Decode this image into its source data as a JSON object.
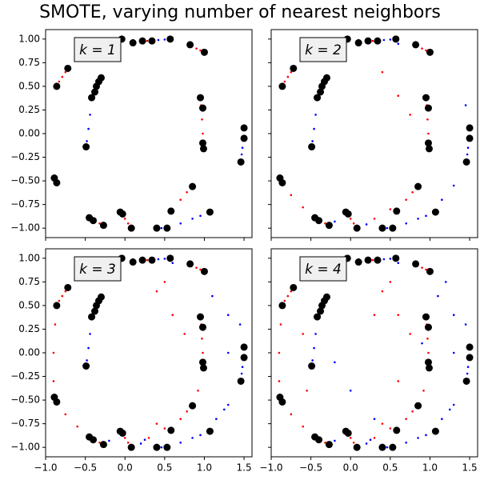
{
  "title": "SMOTE, varying number of nearest neighbors",
  "chart_data": [
    {
      "type": "scatter",
      "annotation": "k = 1",
      "xlim": [
        -1.0,
        1.6
      ],
      "ylim": [
        -1.1,
        1.1
      ],
      "xticks": [
        -1.0,
        -0.5,
        0.0,
        0.5,
        1.0,
        1.5
      ],
      "yticks": [
        {
          "value": -1.0,
          "label": "−1.00"
        },
        {
          "value": -0.75,
          "label": "−0.75"
        },
        {
          "value": -0.5,
          "label": "−0.50"
        },
        {
          "value": -0.25,
          "label": "−0.25"
        },
        {
          "value": 0.0,
          "label": "0.00"
        },
        {
          "value": 0.25,
          "label": "0.25"
        },
        {
          "value": 0.5,
          "label": "0.50"
        },
        {
          "value": 0.75,
          "label": "0.75"
        },
        {
          "value": 1.0,
          "label": "1.00"
        }
      ],
      "series": [
        {
          "color": "#ff0000",
          "size": 1.3,
          "x": [
            -0.79,
            -0.75,
            -0.83,
            0.1,
            0.2,
            0.28,
            0.9,
            0.95,
            0.96,
            0.97,
            0.98,
            0.985,
            0.7,
            0.78,
            -0.38,
            -0.32,
            0.0,
            0.04
          ],
          "values": [
            0.6,
            0.65,
            0.55,
            0.99,
            0.985,
            0.98,
            0.9,
            0.88,
            0.3,
            0.15,
            0.0,
            -0.1,
            -0.7,
            -0.62,
            -0.93,
            -0.95,
            -0.9,
            -0.95
          ]
        },
        {
          "color": "#0000ff",
          "size": 1.3,
          "x": [
            0.42,
            0.5,
            -0.35,
            -0.4,
            -0.44,
            -0.46,
            -0.48,
            1.49,
            1.48,
            1.47,
            0.7,
            0.85,
            0.95,
            0.46
          ],
          "values": [
            0.99,
            0.995,
            0.5,
            0.42,
            0.2,
            0.05,
            -0.08,
            -0.05,
            -0.15,
            -0.22,
            -0.95,
            -0.9,
            -0.87,
            -1.0
          ]
        },
        {
          "color": "#000000",
          "size": 4.5,
          "x": [
            -0.04,
            0.1,
            0.22,
            0.34,
            0.57,
            0.82,
            1.0,
            -0.72,
            -0.86,
            -0.3,
            -0.33,
            -0.36,
            -0.38,
            -0.42,
            -0.49,
            0.95,
            0.98,
            0.98,
            0.99,
            1.5,
            1.5,
            1.46,
            -0.89,
            -0.86,
            0.85,
            0.58,
            1.07,
            -0.45,
            -0.4,
            -0.27,
            -0.06,
            -0.03,
            0.08,
            0.4,
            0.53
          ],
          "values": [
            1.0,
            0.96,
            0.98,
            0.98,
            1.0,
            0.94,
            0.86,
            0.69,
            0.5,
            0.59,
            0.55,
            0.5,
            0.44,
            0.38,
            -0.14,
            0.38,
            0.27,
            -0.1,
            -0.16,
            0.06,
            -0.05,
            -0.3,
            -0.47,
            -0.52,
            -0.56,
            -0.82,
            -0.83,
            -0.89,
            -0.92,
            -0.97,
            -0.83,
            -0.85,
            -1.0,
            -1.0,
            -1.0
          ]
        }
      ]
    },
    {
      "type": "scatter",
      "annotation": "k = 2",
      "xlim": [
        -1.0,
        1.6
      ],
      "ylim": [
        -1.1,
        1.1
      ],
      "xticks": [
        -1.0,
        -0.5,
        0.0,
        0.5,
        1.0,
        1.5
      ],
      "yticks": [
        -1.0,
        -0.75,
        -0.5,
        -0.25,
        0.0,
        0.25,
        0.5,
        0.75,
        1.0
      ],
      "series": [
        {
          "color": "#ff0000",
          "size": 1.3,
          "x": [
            -0.79,
            -0.75,
            -0.83,
            0.1,
            0.2,
            0.28,
            0.9,
            0.95,
            0.96,
            0.97,
            0.98,
            0.985,
            0.7,
            0.78,
            -0.38,
            -0.32,
            0.0,
            0.04,
            -0.6,
            -0.45,
            0.4,
            0.6,
            0.75,
            -0.75,
            -0.6,
            0.3,
            0.5
          ],
          "values": [
            0.6,
            0.65,
            0.55,
            0.99,
            0.985,
            0.98,
            0.9,
            0.88,
            0.3,
            0.15,
            0.0,
            -0.1,
            -0.7,
            -0.62,
            -0.93,
            -0.95,
            -0.9,
            -0.95,
            0.8,
            0.9,
            0.65,
            0.4,
            0.2,
            -0.65,
            -0.78,
            -0.9,
            -0.8
          ]
        },
        {
          "color": "#0000ff",
          "size": 1.3,
          "x": [
            0.42,
            0.5,
            -0.35,
            -0.4,
            -0.44,
            -0.46,
            -0.48,
            1.49,
            1.48,
            1.47,
            0.7,
            0.85,
            0.95,
            0.46,
            -0.47,
            -0.2,
            0.2,
            1.3,
            1.15,
            1.45,
            0.6
          ],
          "values": [
            0.99,
            0.995,
            0.5,
            0.42,
            0.2,
            0.05,
            -0.08,
            -0.05,
            -0.15,
            -0.22,
            -0.95,
            -0.9,
            -0.87,
            -1.0,
            -0.9,
            -0.93,
            -0.96,
            -0.55,
            -0.7,
            0.3,
            0.95
          ]
        },
        {
          "color": "#000000",
          "size": 4.5,
          "x": [
            -0.04,
            0.1,
            0.22,
            0.34,
            0.57,
            0.82,
            1.0,
            -0.72,
            -0.86,
            -0.3,
            -0.33,
            -0.36,
            -0.38,
            -0.42,
            -0.49,
            0.95,
            0.98,
            0.98,
            0.99,
            1.5,
            1.5,
            1.46,
            -0.89,
            -0.86,
            0.85,
            0.58,
            1.07,
            -0.45,
            -0.4,
            -0.27,
            -0.06,
            -0.03,
            0.08,
            0.4,
            0.53
          ],
          "values": [
            1.0,
            0.96,
            0.98,
            0.98,
            1.0,
            0.94,
            0.86,
            0.69,
            0.5,
            0.59,
            0.55,
            0.5,
            0.44,
            0.38,
            -0.14,
            0.38,
            0.27,
            -0.1,
            -0.16,
            0.06,
            -0.05,
            -0.3,
            -0.47,
            -0.52,
            -0.56,
            -0.82,
            -0.83,
            -0.89,
            -0.92,
            -0.97,
            -0.83,
            -0.85,
            -1.0,
            -1.0,
            -1.0
          ]
        }
      ]
    },
    {
      "type": "scatter",
      "annotation": "k = 3",
      "xlim": [
        -1.0,
        1.6
      ],
      "ylim": [
        -1.1,
        1.1
      ],
      "xticks": [
        {
          "value": -1.0,
          "label": "−1.0"
        },
        {
          "value": -0.5,
          "label": "−0.5"
        },
        {
          "value": 0.0,
          "label": "0.0"
        },
        {
          "value": 0.5,
          "label": "0.5"
        },
        {
          "value": 1.0,
          "label": "1.0"
        },
        {
          "value": 1.5,
          "label": "1.5"
        }
      ],
      "yticks": [
        {
          "value": -1.0,
          "label": "−1.00"
        },
        {
          "value": -0.75,
          "label": "−0.75"
        },
        {
          "value": -0.5,
          "label": "−0.50"
        },
        {
          "value": -0.25,
          "label": "−0.25"
        },
        {
          "value": 0.0,
          "label": "0.00"
        },
        {
          "value": 0.25,
          "label": "0.25"
        },
        {
          "value": 0.5,
          "label": "0.50"
        },
        {
          "value": 0.75,
          "label": "0.75"
        },
        {
          "value": 1.0,
          "label": "1.00"
        }
      ],
      "series": [
        {
          "color": "#ff0000",
          "size": 1.3,
          "x": [
            -0.79,
            -0.75,
            -0.83,
            0.1,
            0.2,
            0.28,
            0.9,
            0.95,
            0.96,
            0.97,
            0.98,
            0.985,
            0.7,
            0.78,
            -0.38,
            -0.32,
            0.0,
            0.04,
            -0.6,
            -0.45,
            0.4,
            0.6,
            0.75,
            -0.75,
            -0.6,
            0.3,
            0.5,
            -0.9,
            -0.88,
            -0.9,
            0.5,
            0.4,
            0.92
          ],
          "values": [
            0.6,
            0.65,
            0.55,
            0.99,
            0.985,
            0.98,
            0.9,
            0.88,
            0.3,
            0.15,
            0.0,
            -0.1,
            -0.7,
            -0.62,
            -0.93,
            -0.95,
            -0.9,
            -0.95,
            0.8,
            0.9,
            0.65,
            0.4,
            0.2,
            -0.65,
            -0.78,
            -0.9,
            -0.8,
            0.0,
            0.3,
            -0.3,
            0.75,
            -0.75,
            -0.4
          ]
        },
        {
          "color": "#0000ff",
          "size": 1.3,
          "x": [
            0.42,
            0.5,
            -0.35,
            -0.4,
            -0.44,
            -0.46,
            -0.48,
            1.49,
            1.48,
            1.47,
            0.7,
            0.85,
            0.95,
            0.46,
            -0.47,
            -0.2,
            0.2,
            1.3,
            1.15,
            1.45,
            0.6,
            1.1,
            1.3,
            0.25,
            1.25,
            1.3
          ],
          "values": [
            0.99,
            0.995,
            0.5,
            0.42,
            0.2,
            0.05,
            -0.08,
            -0.05,
            -0.15,
            -0.22,
            -0.95,
            -0.9,
            -0.87,
            -1.0,
            -0.9,
            -0.93,
            -0.96,
            -0.55,
            -0.7,
            0.3,
            0.95,
            0.6,
            0.4,
            -0.92,
            -0.6,
            0.0
          ]
        },
        {
          "color": "#000000",
          "size": 4.5,
          "x": [
            -0.04,
            0.1,
            0.22,
            0.34,
            0.57,
            0.82,
            1.0,
            -0.72,
            -0.86,
            -0.3,
            -0.33,
            -0.36,
            -0.38,
            -0.42,
            -0.49,
            0.95,
            0.98,
            0.98,
            0.99,
            1.5,
            1.5,
            1.46,
            -0.89,
            -0.86,
            0.85,
            0.58,
            1.07,
            -0.45,
            -0.4,
            -0.27,
            -0.06,
            -0.03,
            0.08,
            0.4,
            0.53
          ],
          "values": [
            1.0,
            0.96,
            0.98,
            0.98,
            1.0,
            0.94,
            0.86,
            0.69,
            0.5,
            0.59,
            0.55,
            0.5,
            0.44,
            0.38,
            -0.14,
            0.38,
            0.27,
            -0.1,
            -0.16,
            0.06,
            -0.05,
            -0.3,
            -0.47,
            -0.52,
            -0.56,
            -0.82,
            -0.83,
            -0.89,
            -0.92,
            -0.97,
            -0.83,
            -0.85,
            -1.0,
            -1.0,
            -1.0
          ]
        }
      ]
    },
    {
      "type": "scatter",
      "annotation": "k = 4",
      "xlim": [
        -1.0,
        1.6
      ],
      "ylim": [
        -1.1,
        1.1
      ],
      "xticks": [
        {
          "value": -1.0,
          "label": "−1.0"
        },
        {
          "value": -0.5,
          "label": "−0.5"
        },
        {
          "value": 0.0,
          "label": "0.0"
        },
        {
          "value": 0.5,
          "label": "0.5"
        },
        {
          "value": 1.0,
          "label": "1.0"
        },
        {
          "value": 1.5,
          "label": "1.5"
        }
      ],
      "yticks": [
        -1.0,
        -0.75,
        -0.5,
        -0.25,
        0.0,
        0.25,
        0.5,
        0.75,
        1.0
      ],
      "series": [
        {
          "color": "#ff0000",
          "size": 1.3,
          "x": [
            -0.79,
            -0.75,
            -0.83,
            0.1,
            0.2,
            0.28,
            0.9,
            0.95,
            0.96,
            0.97,
            0.98,
            0.985,
            0.7,
            0.78,
            -0.38,
            -0.32,
            0.0,
            0.04,
            -0.6,
            -0.45,
            0.4,
            0.6,
            0.75,
            -0.75,
            -0.6,
            0.3,
            0.5,
            -0.9,
            -0.88,
            -0.9,
            0.5,
            0.4,
            0.92,
            -0.6,
            -0.55,
            0.3,
            0.6,
            -0.3
          ],
          "values": [
            0.6,
            0.65,
            0.55,
            0.99,
            0.985,
            0.98,
            0.9,
            0.88,
            0.3,
            0.15,
            0.0,
            -0.1,
            -0.7,
            -0.62,
            -0.93,
            -0.95,
            -0.9,
            -0.95,
            0.8,
            0.9,
            0.65,
            0.4,
            0.2,
            -0.65,
            -0.78,
            -0.9,
            -0.8,
            0.0,
            0.3,
            -0.3,
            0.75,
            -0.75,
            -0.4,
            0.2,
            -0.4,
            0.4,
            -0.3,
            0.85
          ]
        },
        {
          "color": "#0000ff",
          "size": 1.3,
          "x": [
            0.42,
            0.5,
            -0.35,
            -0.4,
            -0.44,
            -0.46,
            -0.48,
            1.49,
            1.48,
            1.47,
            0.7,
            0.85,
            0.95,
            0.46,
            -0.47,
            -0.2,
            0.2,
            1.3,
            1.15,
            1.45,
            0.6,
            1.1,
            1.3,
            0.25,
            1.25,
            1.3,
            0.0,
            0.3,
            1.2,
            0.9,
            -0.2
          ],
          "values": [
            0.99,
            0.995,
            0.5,
            0.42,
            0.2,
            0.05,
            -0.08,
            -0.05,
            -0.15,
            -0.22,
            -0.95,
            -0.9,
            -0.87,
            -1.0,
            -0.9,
            -0.93,
            -0.96,
            -0.55,
            -0.7,
            0.3,
            0.95,
            0.6,
            0.4,
            -0.92,
            -0.6,
            0.0,
            -0.4,
            -0.7,
            0.75,
            0.1,
            -0.1
          ]
        },
        {
          "color": "#000000",
          "size": 4.5,
          "x": [
            -0.04,
            0.1,
            0.22,
            0.34,
            0.57,
            0.82,
            1.0,
            -0.72,
            -0.86,
            -0.3,
            -0.33,
            -0.36,
            -0.38,
            -0.42,
            -0.49,
            0.95,
            0.98,
            0.98,
            0.99,
            1.5,
            1.5,
            1.46,
            -0.89,
            -0.86,
            0.85,
            0.58,
            1.07,
            -0.45,
            -0.4,
            -0.27,
            -0.06,
            -0.03,
            0.08,
            0.4,
            0.53
          ],
          "values": [
            1.0,
            0.96,
            0.98,
            0.98,
            1.0,
            0.94,
            0.86,
            0.69,
            0.5,
            0.59,
            0.55,
            0.5,
            0.44,
            0.38,
            -0.14,
            0.38,
            0.27,
            -0.1,
            -0.16,
            0.06,
            -0.05,
            -0.3,
            -0.47,
            -0.52,
            -0.56,
            -0.82,
            -0.83,
            -0.89,
            -0.92,
            -0.97,
            -0.83,
            -0.85,
            -1.0,
            -1.0,
            -1.0
          ]
        }
      ]
    }
  ]
}
